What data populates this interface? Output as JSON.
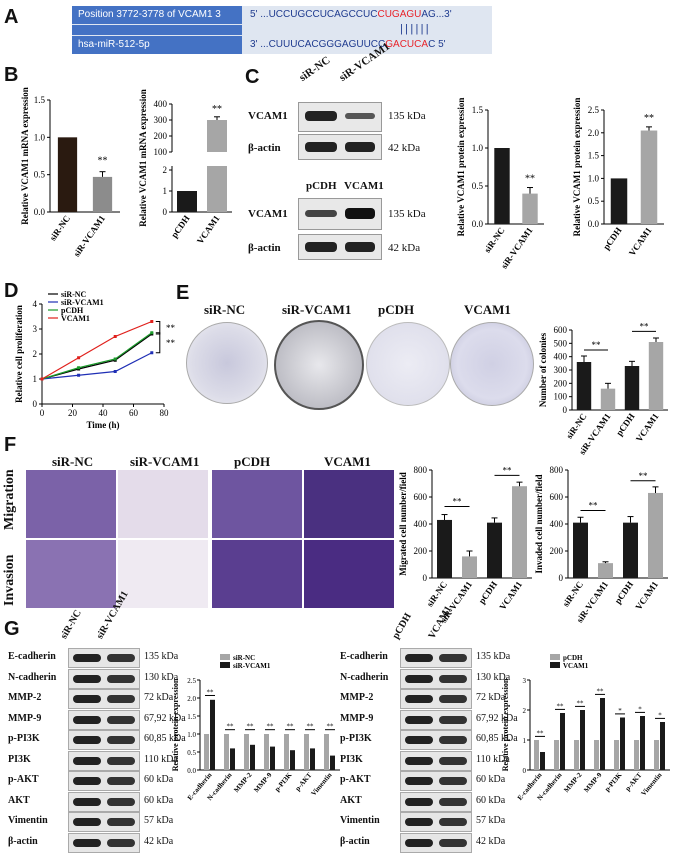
{
  "panels": {
    "A": "A",
    "B": "B",
    "C": "C",
    "D": "D",
    "E": "E",
    "F": "F",
    "G": "G"
  },
  "panelA": {
    "row1_left": "Position 3772-3778 of VCAM1 3 UTR",
    "row1_pre": "5'   ...UCCUGCCUCAGCCUC",
    "row1_red": "CUGAGU",
    "row1_post": "AG...3'",
    "row3_left": "hsa-miR-512-5p",
    "row3_pre": "3'   ...CUUUCACGGGAGUUCC",
    "row3_red": "GACUCA",
    "row3_post": "C 5'",
    "colors": {
      "box": "#dfe6f1",
      "left_box": "#4472c4",
      "seq": "#1f3b8f",
      "red": "#e8232a"
    }
  },
  "panelB": {
    "chart_data": [
      {
        "type": "bar",
        "ylabel": "Relative VCAM1 mRNA expression",
        "categories": [
          "siR-NC",
          "siR-VCAM1"
        ],
        "values": [
          1.0,
          0.47
        ],
        "errors": [
          0,
          0.07
        ],
        "ylim": [
          0,
          1.5
        ],
        "yticks": [
          "0.0",
          "0.5",
          "1.0",
          "1.5"
        ],
        "sig": "**"
      },
      {
        "type": "bar",
        "ylabel": "Relative VCAM1 mRNA expression",
        "categories": [
          "pCDH",
          "VCAM1"
        ],
        "values": [
          1.0,
          300
        ],
        "errors": [
          0,
          20
        ],
        "yticks_lower": [
          "0",
          "1",
          "2"
        ],
        "yticks_upper": [
          "100",
          "200",
          "300",
          "400"
        ],
        "sig": "**"
      }
    ]
  },
  "panelC": {
    "blots1": {
      "top": "siR-NC",
      "top2": "siR-VCAM1",
      "rows": [
        "VCAM1",
        "β-actin"
      ],
      "kda": [
        "135 kDa",
        "42 kDa"
      ]
    },
    "blots2": {
      "top": "pCDH",
      "top2": "VCAM1",
      "rows": [
        "VCAM1",
        "β-actin"
      ],
      "kda": [
        "135 kDa",
        "42 kDa"
      ]
    },
    "chart_data": [
      {
        "type": "bar",
        "ylabel": "Relative VCAM1 protein expression",
        "categories": [
          "siR-NC",
          "siR-VCAM1"
        ],
        "values": [
          1.0,
          0.4
        ],
        "errors": [
          0,
          0.08
        ],
        "ylim": [
          0,
          1.5
        ],
        "yticks": [
          "0.0",
          "0.5",
          "1.0",
          "1.5"
        ],
        "sig": "**"
      },
      {
        "type": "bar",
        "ylabel": "Relative VCAM1 protein expression",
        "categories": [
          "pCDH",
          "VCAM1"
        ],
        "values": [
          1.0,
          2.05
        ],
        "errors": [
          0,
          0.08
        ],
        "ylim": [
          0,
          2.5
        ],
        "yticks": [
          "0.0",
          "0.5",
          "1.0",
          "1.5",
          "2.0",
          "2.5"
        ],
        "sig": "**"
      }
    ]
  },
  "panelD": {
    "chart_data": {
      "type": "line",
      "xlabel": "Time (h)",
      "ylabel": "Relative cell proliferation",
      "x": [
        0,
        24,
        48,
        72
      ],
      "xticks": [
        "0",
        "20",
        "40",
        "60",
        "80"
      ],
      "yticks": [
        "0",
        "1",
        "2",
        "3",
        "4"
      ],
      "xlim": [
        0,
        80
      ],
      "ylim": [
        0,
        4
      ],
      "series": [
        {
          "name": "siR-NC",
          "values": [
            1.0,
            1.4,
            1.75,
            2.8
          ],
          "color": "#000000"
        },
        {
          "name": "siR-VCAM1",
          "values": [
            1.0,
            1.15,
            1.3,
            2.05
          ],
          "color": "#1f2fb5"
        },
        {
          "name": "pCDH",
          "values": [
            1.0,
            1.45,
            1.8,
            2.85
          ],
          "color": "#1a9a2a"
        },
        {
          "name": "VCAM1",
          "values": [
            1.0,
            1.85,
            2.7,
            3.3
          ],
          "color": "#e0201c"
        }
      ],
      "sig": [
        "**",
        "**"
      ]
    }
  },
  "panelE": {
    "labels": [
      "siR-NC",
      "siR-VCAM1",
      "pCDH",
      "VCAM1"
    ],
    "chart_data": {
      "type": "bar",
      "ylabel": "Number of colonies",
      "categories": [
        "siR-NC",
        "siR-VCAM1",
        "pCDH",
        "VCAM1"
      ],
      "values": [
        360,
        160,
        330,
        510
      ],
      "errors": [
        45,
        40,
        35,
        30
      ],
      "ylim": [
        0,
        600
      ],
      "yticks": [
        "0",
        "100",
        "200",
        "300",
        "400",
        "500",
        "600"
      ],
      "sig": [
        "**",
        "**"
      ]
    }
  },
  "panelF": {
    "labels": [
      "siR-NC",
      "siR-VCAM1",
      "pCDH",
      "VCAM1"
    ],
    "rows": [
      "Migration",
      "Invasion"
    ],
    "chart_data": [
      {
        "type": "bar",
        "ylabel": "Migrated cell number/field",
        "categories": [
          "siR-NC",
          "siR-VCAM1",
          "pCDH",
          "VCAM1"
        ],
        "values": [
          430,
          160,
          410,
          680
        ],
        "errors": [
          40,
          40,
          35,
          30
        ],
        "ylim": [
          0,
          800
        ],
        "yticks": [
          "0",
          "200",
          "400",
          "600",
          "800"
        ],
        "sig": [
          "**",
          "**"
        ]
      },
      {
        "type": "bar",
        "ylabel": "Invaded cell number/field",
        "categories": [
          "siR-NC",
          "siR-VCAM1",
          "pCDH",
          "VCAM1"
        ],
        "values": [
          410,
          110,
          410,
          630
        ],
        "errors": [
          40,
          10,
          45,
          45
        ],
        "ylim": [
          0,
          800
        ],
        "yticks": [
          "0",
          "200",
          "400",
          "600",
          "800"
        ],
        "sig": [
          "**",
          "**"
        ]
      }
    ]
  },
  "panelG": {
    "left": {
      "cols": [
        "siR-NC",
        "siR-VCAM1"
      ],
      "rows": [
        "E-cadherin",
        "N-cadherin",
        "MMP-2",
        "MMP-9",
        "p-PI3K",
        "PI3K",
        "p-AKT",
        "AKT",
        "Vimentin",
        "β-actin"
      ],
      "kda": [
        "135 kDa",
        "130 kDa",
        "72 kDa",
        "67,92 kDa",
        "60,85 kDa",
        "110 kDa",
        "60 kDa",
        "60 kDa",
        "57 kDa",
        "42 kDa"
      ]
    },
    "right": {
      "cols": [
        "pCDH",
        "VCAM1"
      ],
      "rows": [
        "E-cadherin",
        "N-cadherin",
        "MMP-2",
        "MMP-9",
        "p-PI3K",
        "PI3K",
        "p-AKT",
        "AKT",
        "Vimentin",
        "β-actin"
      ],
      "kda": [
        "135 kDa",
        "130 kDa",
        "72 kDa",
        "67,92 kDa",
        "60,85 kDa",
        "110 kDa",
        "60 kDa",
        "60 kDa",
        "57 kDa",
        "42 kDa"
      ]
    },
    "chart_data": [
      {
        "type": "bar",
        "ylabel": "Relative protein expression",
        "categories": [
          "E-cadherin",
          "N-cadherin",
          "MMP-2",
          "MMP-9",
          "p-PI3K",
          "p-AKT",
          "Vimentin"
        ],
        "ylim": [
          0,
          2.5
        ],
        "yticks": [
          "0.0",
          "0.5",
          "1.0",
          "1.5",
          "2.0",
          "2.5"
        ],
        "series": [
          {
            "name": "siR-NC",
            "values": [
              1,
              1,
              1,
              1,
              1,
              1,
              1
            ],
            "color": "#a6a6a6"
          },
          {
            "name": "siR-VCAM1",
            "values": [
              1.95,
              0.6,
              0.7,
              0.65,
              0.55,
              0.6,
              0.4
            ],
            "color": "#1a1a1a"
          }
        ],
        "sig": [
          "**",
          "**",
          "**",
          "**",
          "**",
          "**",
          "**"
        ]
      },
      {
        "type": "bar",
        "ylabel": "Relative protein expression",
        "categories": [
          "E-cadherin",
          "N-cadherin",
          "MMP-2",
          "MMP-9",
          "p-PI3K",
          "p-AKT",
          "Vimentin"
        ],
        "ylim": [
          0,
          3
        ],
        "yticks": [
          "0",
          "1",
          "2",
          "3"
        ],
        "series": [
          {
            "name": "pCDH",
            "values": [
              1,
              1,
              1,
              1,
              1,
              1,
              1
            ],
            "color": "#a6a6a6"
          },
          {
            "name": "VCAM1",
            "values": [
              0.6,
              1.9,
              2.0,
              2.4,
              1.75,
              1.8,
              1.6
            ],
            "color": "#1a1a1a"
          }
        ],
        "sig": [
          "**",
          "**",
          "**",
          "**",
          "*",
          "*",
          "*"
        ]
      }
    ]
  }
}
